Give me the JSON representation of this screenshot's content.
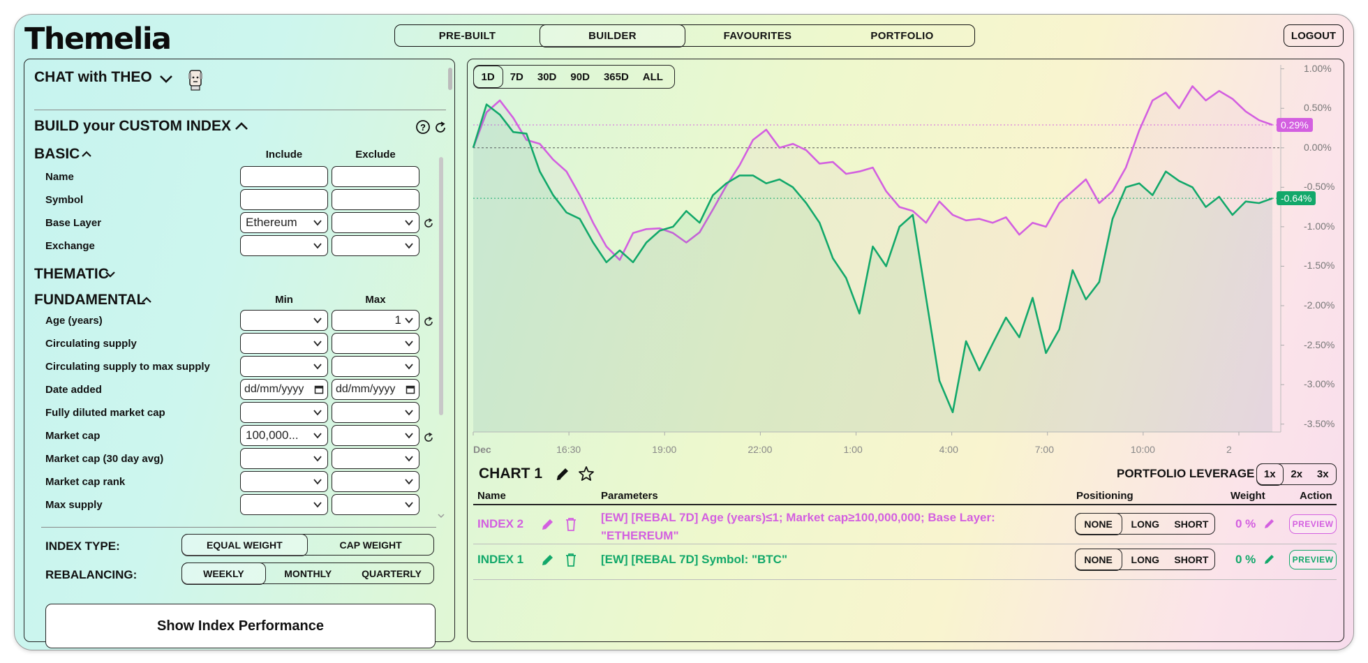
{
  "header": {
    "logo": "Themelia",
    "nav": [
      "PRE-BUILT",
      "BUILDER",
      "FAVOURITES",
      "PORTFOLIO"
    ],
    "active_nav": "BUILDER",
    "logout": "LOGOUT"
  },
  "left": {
    "chat_title": "CHAT with THEO",
    "build_title": "BUILD your CUSTOM INDEX",
    "basic": {
      "title": "BASIC",
      "col_include": "Include",
      "col_exclude": "Exclude",
      "rows": [
        {
          "label": "Name",
          "include": "",
          "exclude": ""
        },
        {
          "label": "Symbol",
          "include": "",
          "exclude": ""
        },
        {
          "label": "Base Layer",
          "include": "Ethereum",
          "exclude": ""
        },
        {
          "label": "Exchange",
          "include": "",
          "exclude": ""
        }
      ]
    },
    "thematic": {
      "title": "THEMATIC"
    },
    "fundamental": {
      "title": "FUNDAMENTAL",
      "col_min": "Min",
      "col_max": "Max",
      "rows": [
        {
          "label": "Age (years)",
          "min": "",
          "max": "1"
        },
        {
          "label": "Circulating supply",
          "min": "",
          "max": ""
        },
        {
          "label": "Circulating supply to max supply",
          "min": "",
          "max": ""
        },
        {
          "label": "Date added",
          "min": "dd/mm/yyyy",
          "max": "dd/mm/yyyy"
        },
        {
          "label": "Fully diluted market cap",
          "min": "",
          "max": ""
        },
        {
          "label": "Market cap",
          "min": "100,000...",
          "max": ""
        },
        {
          "label": "Market cap (30 day avg)",
          "min": "",
          "max": ""
        },
        {
          "label": "Market cap rank",
          "min": "",
          "max": ""
        },
        {
          "label": "Max supply",
          "min": "",
          "max": ""
        }
      ]
    },
    "index_type": {
      "label": "INDEX TYPE:",
      "options": [
        "EQUAL WEIGHT",
        "CAP WEIGHT"
      ],
      "selected": "EQUAL WEIGHT"
    },
    "rebalancing": {
      "label": "REBALANCING:",
      "options": [
        "WEEKLY",
        "MONTHLY",
        "QUARTERLY"
      ],
      "selected": "WEEKLY"
    },
    "show_button": "Show Index Performance"
  },
  "chart": {
    "ranges": [
      "1D",
      "7D",
      "30D",
      "90D",
      "365D",
      "ALL"
    ],
    "active_range": "1D",
    "colors": {
      "index2": "#d35fe0",
      "index1": "#12a86a"
    },
    "last_labels": {
      "index2": "0.29%",
      "index1": "-0.64%"
    }
  },
  "chart_data": {
    "type": "line",
    "title": "",
    "ylim": [
      -3.6,
      1.05
    ],
    "y_ticks": [
      "1.00%",
      "0.50%",
      "0.00%",
      "-0.50%",
      "-1.00%",
      "-1.50%",
      "-2.00%",
      "-2.50%",
      "-3.00%",
      "-3.50%"
    ],
    "x_ticks": [
      "Dec",
      "16:30",
      "19:00",
      "22:00",
      "1:00",
      "4:00",
      "7:00",
      "10:00",
      "2"
    ],
    "grid": false,
    "series": [
      {
        "name": "INDEX 2",
        "values": [
          0.0,
          0.45,
          0.6,
          0.38,
          0.1,
          0.05,
          -0.15,
          -0.3,
          -0.6,
          -0.95,
          -1.25,
          -1.42,
          -1.08,
          -1.03,
          -1.02,
          -1.08,
          -1.2,
          -1.07,
          -0.78,
          -0.48,
          -0.22,
          0.1,
          0.23,
          0.0,
          0.05,
          -0.03,
          -0.2,
          -0.18,
          -0.33,
          -0.3,
          -0.25,
          -0.55,
          -0.75,
          -0.8,
          -0.95,
          -0.68,
          -0.85,
          -0.92,
          -0.9,
          -0.95,
          -0.88,
          -1.1,
          -0.95,
          -1.0,
          -0.7,
          -0.55,
          -0.4,
          -0.7,
          -0.55,
          -0.25,
          0.22,
          0.6,
          0.7,
          0.5,
          0.78,
          0.6,
          0.72,
          0.62,
          0.46,
          0.35,
          0.29
        ]
      },
      {
        "name": "INDEX 1",
        "values": [
          0.0,
          0.55,
          0.42,
          0.2,
          0.18,
          -0.3,
          -0.6,
          -0.82,
          -0.9,
          -1.2,
          -1.45,
          -1.3,
          -1.45,
          -1.2,
          -1.05,
          -1.0,
          -0.8,
          -0.95,
          -0.6,
          -0.45,
          -0.35,
          -0.35,
          -0.45,
          -0.4,
          -0.5,
          -0.7,
          -0.95,
          -1.4,
          -1.65,
          -2.1,
          -1.25,
          -1.5,
          -1.0,
          -0.85,
          -1.9,
          -2.95,
          -3.35,
          -2.45,
          -2.82,
          -2.48,
          -2.15,
          -2.4,
          -1.9,
          -2.6,
          -2.3,
          -1.55,
          -1.92,
          -1.7,
          -0.9,
          -0.5,
          -0.45,
          -0.6,
          -0.3,
          -0.42,
          -0.5,
          -0.75,
          -0.62,
          -0.85,
          -0.68,
          -0.7,
          -0.64
        ]
      }
    ]
  },
  "table": {
    "chart_title": "CHART 1",
    "leverage_label": "PORTFOLIO LEVERAGE",
    "leverage_options": [
      "1x",
      "2x",
      "3x"
    ],
    "leverage_selected": "1x",
    "headers": {
      "name": "Name",
      "params": "Parameters",
      "positioning": "Positioning",
      "weight": "Weight",
      "action": "Action"
    },
    "rows": [
      {
        "name": "INDEX 2",
        "params": "[EW] [REBAL 7D] Age (years)≤1; Market cap≥100,000,000; Base Layer: \"ETHEREUM\"",
        "weight": "0 %",
        "action": "PREVIEW",
        "positions": [
          "NONE",
          "LONG",
          "SHORT"
        ],
        "selected": "NONE"
      },
      {
        "name": "INDEX 1",
        "params": "[EW] [REBAL 7D] Symbol: \"BTC\"",
        "weight": "0 %",
        "action": "PREVIEW",
        "positions": [
          "NONE",
          "LONG",
          "SHORT"
        ],
        "selected": "NONE"
      }
    ]
  }
}
